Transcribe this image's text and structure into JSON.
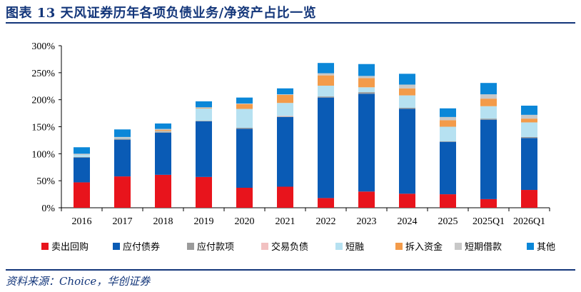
{
  "header": {
    "title": "图表 13  天风证券历年各项负债业务/净资产占比一览"
  },
  "footer": {
    "source": "资料来源：Choice，华创证券"
  },
  "chart_data": {
    "type": "bar",
    "stacked": true,
    "title": "图表 13  天风证券历年各项负债业务/净资产占比一览",
    "categories": [
      "2016",
      "2017",
      "2018",
      "2019",
      "2020",
      "2021",
      "2022",
      "2023",
      "2024",
      "2025",
      "2025Q1",
      "2026Q1"
    ],
    "ylim": [
      0,
      300
    ],
    "yticks": [
      0,
      50,
      100,
      150,
      200,
      250,
      300
    ],
    "ytick_labels": [
      "0%",
      "50%",
      "100%",
      "150%",
      "200%",
      "250%",
      "300%"
    ],
    "grid": false,
    "legend_position": "bottom",
    "series": [
      {
        "name": "卖出回购",
        "color": "#e8141c",
        "values": [
          47,
          58,
          61,
          57,
          37,
          39,
          18,
          30,
          26,
          25,
          16,
          33
        ]
      },
      {
        "name": "应付债券",
        "color": "#0a5bb5",
        "values": [
          46,
          68,
          78,
          103,
          109,
          129,
          186,
          181,
          157,
          97,
          147,
          96
        ]
      },
      {
        "name": "应付款项",
        "color": "#9b9b9b",
        "values": [
          1,
          2,
          2,
          1,
          2,
          1,
          2,
          3,
          2,
          1,
          2,
          2
        ]
      },
      {
        "name": "交易负债",
        "color": "#f2c1c1",
        "values": [
          0,
          0,
          0,
          0,
          0,
          1,
          0,
          0,
          0,
          0,
          0,
          0
        ]
      },
      {
        "name": "短融",
        "color": "#b6e1f1",
        "values": [
          4,
          1,
          1,
          23,
          35,
          24,
          20,
          9,
          23,
          27,
          23,
          27
        ]
      },
      {
        "name": "拆入资金",
        "color": "#f39b4a",
        "values": [
          0,
          0,
          2,
          1,
          9,
          15,
          19,
          17,
          13,
          12,
          14,
          7
        ]
      },
      {
        "name": "短期借款",
        "color": "#c8c8c8",
        "values": [
          2,
          2,
          2,
          1,
          1,
          1,
          4,
          4,
          7,
          6,
          8,
          7
        ]
      },
      {
        "name": "其他",
        "color": "#0b87d8",
        "values": [
          12,
          14,
          10,
          11,
          11,
          11,
          19,
          22,
          20,
          16,
          21,
          17
        ]
      }
    ]
  }
}
